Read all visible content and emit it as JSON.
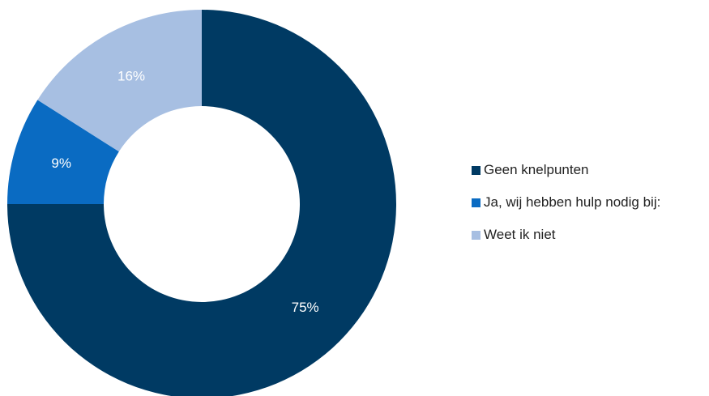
{
  "chart_data": {
    "type": "pie",
    "donut": true,
    "title": "",
    "slices": [
      {
        "label": "Geen knelpunten",
        "value": 75,
        "value_label": "75%",
        "color": "#003a63"
      },
      {
        "label": "Ja, wij hebben hulp nodig bij:",
        "value": 9,
        "value_label": "9%",
        "color": "#0a6bc2"
      },
      {
        "label": "Weet ik niet",
        "value": 16,
        "value_label": "16%",
        "color": "#a7bfe2"
      }
    ],
    "legend_position": "right",
    "start_angle": "12 o'clock",
    "direction": "clockwise"
  }
}
